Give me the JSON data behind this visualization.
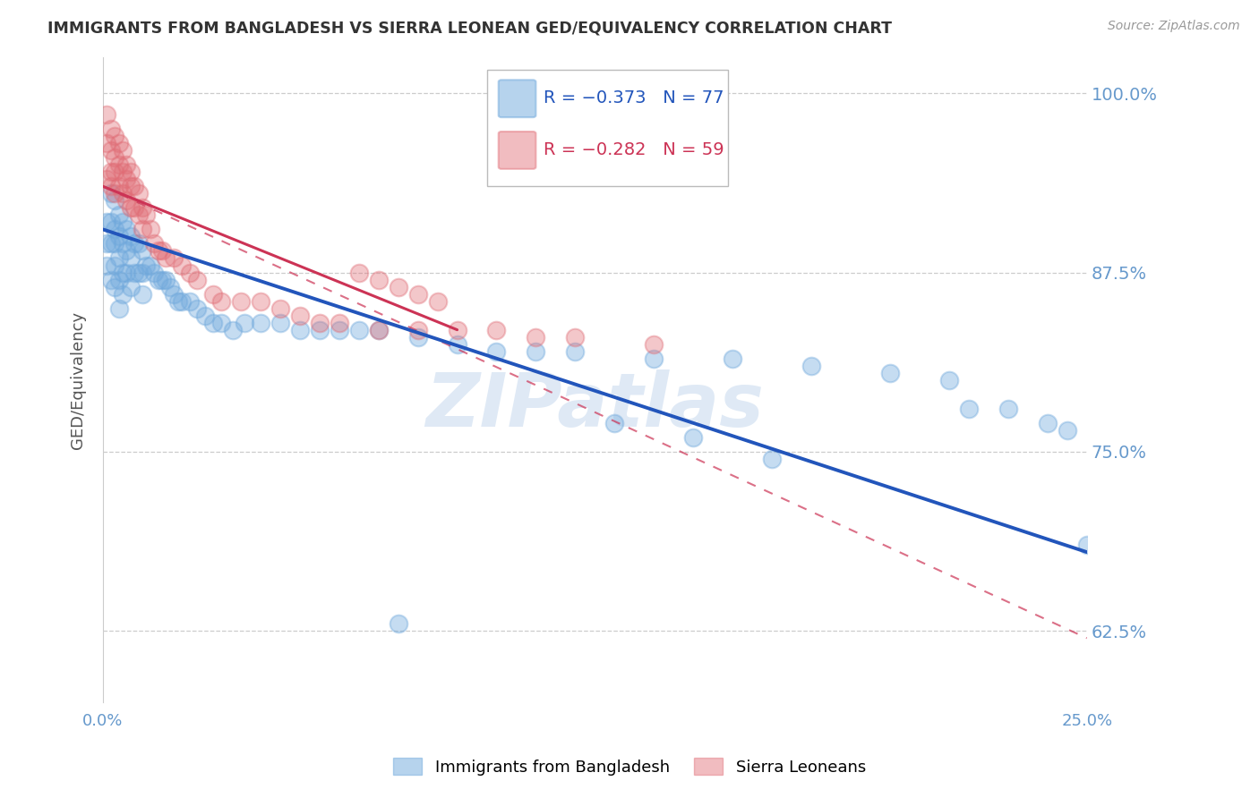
{
  "title": "IMMIGRANTS FROM BANGLADESH VS SIERRA LEONEAN GED/EQUIVALENCY CORRELATION CHART",
  "source": "Source: ZipAtlas.com",
  "ylabel": "GED/Equivalency",
  "xlim": [
    0.0,
    0.25
  ],
  "ylim": [
    0.575,
    1.025
  ],
  "xticks": [
    0.0,
    0.05,
    0.1,
    0.15,
    0.2,
    0.25
  ],
  "xtick_labels": [
    "0.0%",
    "",
    "",
    "",
    "",
    "25.0%"
  ],
  "yticks": [
    0.625,
    0.75,
    0.875,
    1.0
  ],
  "ytick_labels": [
    "62.5%",
    "75.0%",
    "87.5%",
    "100.0%"
  ],
  "blue_label": "Immigrants from Bangladesh",
  "pink_label": "Sierra Leoneans",
  "blue_color": "#6fa8dc",
  "pink_color": "#e06c75",
  "legend_blue_R": "R = −0.373",
  "legend_blue_N": "N = 77",
  "legend_pink_R": "R = −0.282",
  "legend_pink_N": "N = 59",
  "blue_trend": [
    0.905,
    0.68
  ],
  "pink_trend_solid": [
    0.935,
    0.835
  ],
  "pink_trend_dashed": [
    0.935,
    0.62
  ],
  "blue_scatter_x": [
    0.001,
    0.001,
    0.001,
    0.002,
    0.002,
    0.002,
    0.002,
    0.003,
    0.003,
    0.003,
    0.003,
    0.003,
    0.004,
    0.004,
    0.004,
    0.004,
    0.004,
    0.005,
    0.005,
    0.005,
    0.005,
    0.006,
    0.006,
    0.006,
    0.007,
    0.007,
    0.007,
    0.008,
    0.008,
    0.009,
    0.009,
    0.01,
    0.01,
    0.01,
    0.011,
    0.012,
    0.013,
    0.014,
    0.015,
    0.016,
    0.017,
    0.018,
    0.019,
    0.02,
    0.022,
    0.024,
    0.026,
    0.028,
    0.03,
    0.033,
    0.036,
    0.04,
    0.045,
    0.05,
    0.055,
    0.06,
    0.065,
    0.07,
    0.08,
    0.09,
    0.1,
    0.11,
    0.12,
    0.14,
    0.16,
    0.18,
    0.2,
    0.215,
    0.22,
    0.23,
    0.24,
    0.245,
    0.25,
    0.13,
    0.15,
    0.17,
    0.075
  ],
  "blue_scatter_y": [
    0.91,
    0.895,
    0.88,
    0.93,
    0.91,
    0.895,
    0.87,
    0.925,
    0.905,
    0.895,
    0.88,
    0.865,
    0.915,
    0.9,
    0.885,
    0.87,
    0.85,
    0.91,
    0.895,
    0.875,
    0.86,
    0.905,
    0.89,
    0.875,
    0.9,
    0.885,
    0.865,
    0.895,
    0.875,
    0.895,
    0.875,
    0.89,
    0.875,
    0.86,
    0.88,
    0.88,
    0.875,
    0.87,
    0.87,
    0.87,
    0.865,
    0.86,
    0.855,
    0.855,
    0.855,
    0.85,
    0.845,
    0.84,
    0.84,
    0.835,
    0.84,
    0.84,
    0.84,
    0.835,
    0.835,
    0.835,
    0.835,
    0.835,
    0.83,
    0.825,
    0.82,
    0.82,
    0.82,
    0.815,
    0.815,
    0.81,
    0.805,
    0.8,
    0.78,
    0.78,
    0.77,
    0.765,
    0.685,
    0.77,
    0.76,
    0.745,
    0.63
  ],
  "pink_scatter_x": [
    0.001,
    0.001,
    0.001,
    0.002,
    0.002,
    0.002,
    0.002,
    0.003,
    0.003,
    0.003,
    0.003,
    0.004,
    0.004,
    0.004,
    0.005,
    0.005,
    0.005,
    0.006,
    0.006,
    0.006,
    0.007,
    0.007,
    0.007,
    0.008,
    0.008,
    0.009,
    0.009,
    0.01,
    0.01,
    0.011,
    0.012,
    0.013,
    0.014,
    0.015,
    0.016,
    0.018,
    0.02,
    0.022,
    0.024,
    0.028,
    0.03,
    0.035,
    0.04,
    0.045,
    0.05,
    0.055,
    0.06,
    0.07,
    0.08,
    0.09,
    0.1,
    0.11,
    0.12,
    0.14,
    0.07,
    0.075,
    0.08,
    0.085,
    0.065
  ],
  "pink_scatter_y": [
    0.985,
    0.965,
    0.94,
    0.975,
    0.96,
    0.945,
    0.935,
    0.97,
    0.955,
    0.945,
    0.93,
    0.965,
    0.95,
    0.935,
    0.96,
    0.945,
    0.93,
    0.95,
    0.94,
    0.925,
    0.945,
    0.935,
    0.92,
    0.935,
    0.92,
    0.93,
    0.915,
    0.92,
    0.905,
    0.915,
    0.905,
    0.895,
    0.89,
    0.89,
    0.885,
    0.885,
    0.88,
    0.875,
    0.87,
    0.86,
    0.855,
    0.855,
    0.855,
    0.85,
    0.845,
    0.84,
    0.84,
    0.835,
    0.835,
    0.835,
    0.835,
    0.83,
    0.83,
    0.825,
    0.87,
    0.865,
    0.86,
    0.855,
    0.875
  ],
  "background_color": "#ffffff",
  "grid_color": "#cccccc",
  "title_color": "#333333",
  "axis_label_color": "#555555",
  "tick_color": "#6699cc",
  "watermark_text": "ZIPatlas",
  "watermark_color": "#c5d8ee"
}
